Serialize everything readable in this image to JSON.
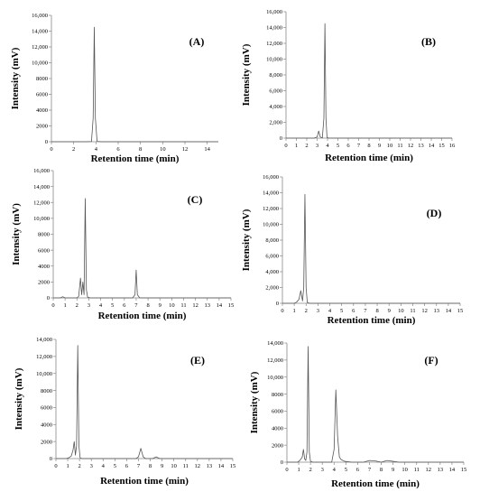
{
  "chart_data": [
    {
      "type": "line",
      "title": "(A)",
      "xlabel": "Retention time (min)",
      "ylabel": "Intensity (mV)",
      "xlim": [
        0,
        15
      ],
      "ylim": [
        0,
        16000
      ],
      "xticks": [
        0,
        2,
        4,
        6,
        8,
        10,
        12,
        14
      ],
      "yticks": [
        0,
        2000,
        4000,
        6000,
        8000,
        10000,
        12000,
        14000,
        16000
      ],
      "ytick_labels": [
        "0",
        "2000",
        "4000",
        "6000",
        "8000",
        "10,000",
        "12,000",
        "14,000",
        "16,000"
      ],
      "series": [
        {
          "x": [
            0,
            3.0,
            3.6,
            3.75,
            3.85,
            3.95,
            4.1,
            4.5,
            15
          ],
          "y": [
            0,
            0,
            30,
            3000,
            14500,
            3000,
            40,
            0,
            0
          ]
        }
      ]
    },
    {
      "type": "line",
      "title": "(B)",
      "xlabel": "Retention time (min)",
      "ylabel": "Intensity (mV)",
      "xlim": [
        0,
        16
      ],
      "ylim": [
        0,
        16000
      ],
      "xticks": [
        0,
        1,
        2,
        3,
        4,
        5,
        6,
        7,
        8,
        9,
        10,
        11,
        12,
        13,
        14,
        15,
        16
      ],
      "yticks": [
        0,
        2000,
        4000,
        6000,
        8000,
        10000,
        12000,
        14000,
        16000
      ],
      "ytick_labels": [
        "0",
        "2,000",
        "4,000",
        "6,000",
        "8,000",
        "10,000",
        "12,000",
        "14,000",
        "16,000"
      ],
      "series": [
        {
          "x": [
            0,
            2.7,
            3.0,
            3.15,
            3.3,
            3.5,
            3.65,
            3.75,
            3.85,
            3.95,
            4.1,
            16
          ],
          "y": [
            0,
            0,
            150,
            900,
            150,
            30,
            2500,
            14500,
            2500,
            80,
            0,
            0
          ]
        }
      ]
    },
    {
      "type": "line",
      "title": "(C)",
      "xlabel": "Retention time (min)",
      "ylabel": "Intensity (mV)",
      "xlim": [
        0,
        15
      ],
      "ylim": [
        0,
        16000
      ],
      "xticks": [
        0,
        1,
        2,
        3,
        4,
        5,
        6,
        7,
        8,
        9,
        10,
        11,
        12,
        13,
        14,
        15
      ],
      "yticks": [
        0,
        2000,
        4000,
        6000,
        8000,
        10000,
        12000,
        14000,
        16000
      ],
      "ytick_labels": [
        "0",
        "2000",
        "4000",
        "6000",
        "8000",
        "10,000",
        "12,000",
        "14,000",
        "16,000"
      ],
      "series": [
        {
          "x": [
            0,
            0.6,
            0.8,
            1.0,
            2.0,
            2.15,
            2.3,
            2.4,
            2.5,
            2.6,
            2.7,
            2.8,
            2.9,
            3.1,
            6.7,
            6.9,
            7.0,
            7.1,
            7.3,
            15
          ],
          "y": [
            0,
            0,
            150,
            0,
            0,
            200,
            2500,
            400,
            2000,
            400,
            12500,
            1000,
            100,
            0,
            0,
            400,
            3500,
            400,
            0,
            0
          ]
        }
      ]
    },
    {
      "type": "line",
      "title": "(D)",
      "xlabel": "Retention time (min)",
      "ylabel": "Intensity (mV)",
      "xlim": [
        0,
        15
      ],
      "ylim": [
        0,
        16000
      ],
      "xticks": [
        0,
        1,
        2,
        3,
        4,
        5,
        6,
        7,
        8,
        9,
        10,
        11,
        12,
        13,
        14,
        15
      ],
      "yticks": [
        0,
        2000,
        4000,
        6000,
        8000,
        10000,
        12000,
        14000,
        16000
      ],
      "ytick_labels": [
        "0",
        "2,000",
        "4,000",
        "6,000",
        "8,000",
        "10,000",
        "12,000",
        "14,000",
        "16,000"
      ],
      "series": [
        {
          "x": [
            0,
            1.0,
            1.2,
            1.4,
            1.55,
            1.7,
            1.8,
            1.9,
            2.0,
            2.1,
            2.3,
            15
          ],
          "y": [
            0,
            0,
            150,
            500,
            1600,
            300,
            2000,
            13800,
            2000,
            100,
            0,
            0
          ]
        }
      ]
    },
    {
      "type": "line",
      "title": "(E)",
      "xlabel": "Retention time (min)",
      "ylabel": "Intensity (mV)",
      "xlim": [
        0,
        15
      ],
      "ylim": [
        0,
        14000
      ],
      "xticks": [
        0,
        1,
        2,
        3,
        4,
        5,
        6,
        7,
        8,
        9,
        10,
        11,
        12,
        13,
        14,
        15
      ],
      "yticks": [
        0,
        2000,
        4000,
        6000,
        8000,
        10000,
        12000,
        14000
      ],
      "ytick_labels": [
        "0",
        "2000",
        "4000",
        "6000",
        "8000",
        "10,000",
        "12,000",
        "14,000"
      ],
      "series": [
        {
          "x": [
            0,
            0.9,
            1.1,
            1.3,
            1.45,
            1.55,
            1.65,
            1.75,
            1.85,
            1.95,
            2.05,
            2.2,
            6.8,
            7.0,
            7.2,
            7.4,
            7.6,
            8.2,
            8.5,
            8.8,
            15
          ],
          "y": [
            0,
            0,
            100,
            300,
            1000,
            2000,
            400,
            1500,
            13300,
            1500,
            100,
            0,
            0,
            200,
            1200,
            200,
            0,
            0,
            200,
            0,
            0
          ]
        }
      ]
    },
    {
      "type": "line",
      "title": "(F)",
      "xlabel": "Retention time (min)",
      "ylabel": "Intensity (mV)",
      "xlim": [
        0,
        15
      ],
      "ylim": [
        0,
        14000
      ],
      "xticks": [
        0,
        1,
        2,
        3,
        4,
        5,
        6,
        7,
        8,
        9,
        10,
        11,
        12,
        13,
        14,
        15
      ],
      "yticks": [
        0,
        2000,
        4000,
        6000,
        8000,
        10000,
        12000,
        14000
      ],
      "ytick_labels": [
        "0",
        "2000",
        "4000",
        "6000",
        "8000",
        "10,000",
        "12,000",
        "14,000"
      ],
      "series": [
        {
          "x": [
            0,
            0.9,
            1.1,
            1.3,
            1.4,
            1.5,
            1.6,
            1.7,
            1.8,
            1.9,
            2.0,
            2.2,
            3.8,
            4.0,
            4.15,
            4.3,
            4.45,
            4.6,
            4.9,
            5.5,
            6.5,
            7.0,
            7.5,
            8.0,
            8.5,
            9.0,
            9.5,
            15
          ],
          "y": [
            0,
            0,
            200,
            600,
            1500,
            400,
            200,
            1200,
            13600,
            1200,
            100,
            0,
            0,
            1500,
            8500,
            3000,
            600,
            300,
            100,
            0,
            0,
            200,
            150,
            0,
            200,
            100,
            0,
            0
          ]
        }
      ]
    }
  ]
}
